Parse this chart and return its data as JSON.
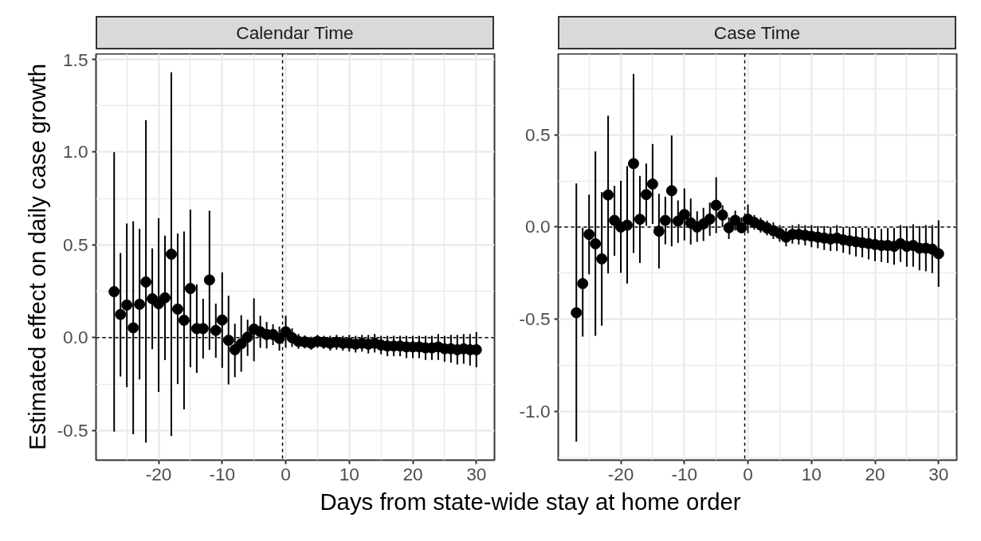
{
  "chart_data": [
    {
      "type": "scatter",
      "title": "Calendar Time",
      "ylabel": "Estimated effect on daily case growth",
      "xlabel": "Days from state-wide stay at home order",
      "marker": "circle",
      "grid": true,
      "xlim": [
        -29.85,
        32.85
      ],
      "xticks": [
        -20,
        -10,
        0,
        10,
        20,
        30
      ],
      "ylim": [
        -0.66,
        1.53
      ],
      "yticks": [
        {
          "value": -0.5,
          "label": "-0.5"
        },
        {
          "value": 0,
          "label": "0.0"
        },
        {
          "value": 0.5,
          "label": "0.5"
        },
        {
          "value": 1.0,
          "label": "1.0"
        },
        {
          "value": 1.5,
          "label": "1.5"
        }
      ],
      "ref_lines": [
        {
          "axis": "y",
          "value": 0,
          "line_style": "dashed"
        },
        {
          "axis": "x",
          "value": -0.5,
          "line_style": "dashed"
        }
      ],
      "series": [
        {
          "color": "#000000",
          "x": [
            -27,
            -26,
            -25,
            -24,
            -23,
            -22,
            -21,
            -20,
            -19,
            -18,
            -17,
            -16,
            -15,
            -14,
            -13,
            -12,
            -11,
            -10,
            -9,
            -8,
            -7,
            -6,
            -5,
            -4,
            -3,
            -2,
            -1,
            0,
            1,
            2,
            3,
            4,
            5,
            6,
            7,
            8,
            9,
            10,
            11,
            12,
            13,
            14,
            15,
            16,
            17,
            18,
            19,
            20,
            21,
            22,
            23,
            24,
            25,
            26,
            27,
            28,
            29,
            30
          ],
          "values": [
            0.248,
            0.125,
            0.176,
            0.053,
            0.18,
            0.3,
            0.21,
            0.183,
            0.215,
            0.45,
            0.154,
            0.094,
            0.265,
            0.049,
            0.049,
            0.311,
            0.039,
            0.095,
            -0.014,
            -0.065,
            -0.033,
            0.003,
            0.046,
            0.032,
            0.017,
            0.017,
            -0.004,
            0.032,
            0.0,
            -0.02,
            -0.023,
            -0.03,
            -0.02,
            -0.025,
            -0.03,
            -0.025,
            -0.03,
            -0.03,
            -0.035,
            -0.03,
            -0.035,
            -0.03,
            -0.04,
            -0.045,
            -0.045,
            -0.045,
            -0.05,
            -0.05,
            -0.05,
            -0.055,
            -0.055,
            -0.05,
            -0.06,
            -0.06,
            -0.065,
            -0.06,
            -0.065,
            -0.065
          ],
          "errors": [
            [
              -0.506,
              1.0
            ],
            [
              -0.209,
              0.457
            ],
            [
              -0.267,
              0.615
            ],
            [
              -0.52,
              0.627
            ],
            [
              -0.225,
              0.586
            ],
            [
              -0.566,
              1.173
            ],
            [
              -0.062,
              0.481
            ],
            [
              -0.293,
              0.644
            ],
            [
              -0.121,
              0.55
            ],
            [
              -0.53,
              1.43
            ],
            [
              -0.25,
              0.562
            ],
            [
              -0.386,
              0.572
            ],
            [
              -0.16,
              0.69
            ],
            [
              -0.19,
              0.288
            ],
            [
              -0.112,
              0.21
            ],
            [
              -0.066,
              0.684
            ],
            [
              -0.108,
              0.183
            ],
            [
              -0.163,
              0.352
            ],
            [
              -0.252,
              0.226
            ],
            [
              -0.213,
              0.075
            ],
            [
              -0.184,
              0.121
            ],
            [
              -0.098,
              0.097
            ],
            [
              -0.127,
              0.212
            ],
            [
              -0.055,
              0.118
            ],
            [
              -0.058,
              0.085
            ],
            [
              -0.04,
              0.072
            ],
            [
              -0.07,
              0.06
            ],
            [
              -0.055,
              0.118
            ],
            0.05,
            0.04,
            0.035,
            0.035,
            0.035,
            0.035,
            0.04,
            0.04,
            0.04,
            0.045,
            0.045,
            0.045,
            0.05,
            0.05,
            0.05,
            0.055,
            0.055,
            0.055,
            0.06,
            0.06,
            0.06,
            0.065,
            0.065,
            0.07,
            0.07,
            0.075,
            0.08,
            0.08,
            0.085,
            0.095
          ]
        }
      ]
    },
    {
      "type": "scatter",
      "title": "Case Time",
      "marker": "circle",
      "grid": true,
      "xlim": [
        -29.85,
        32.85
      ],
      "xticks": [
        -20,
        -10,
        0,
        10,
        20,
        30
      ],
      "ylim": [
        -1.265,
        0.94
      ],
      "yticks": [
        {
          "value": -1.0,
          "label": "-1.0"
        },
        {
          "value": -0.5,
          "label": "-0.5"
        },
        {
          "value": 0,
          "label": "0.0"
        },
        {
          "value": 0.5,
          "label": "0.5"
        }
      ],
      "ref_lines": [
        {
          "axis": "y",
          "value": 0,
          "line_style": "dashed"
        },
        {
          "axis": "x",
          "value": -0.5,
          "line_style": "dashed"
        }
      ],
      "series": [
        {
          "color": "#000000",
          "x": [
            -27,
            -26,
            -25,
            -24,
            -23,
            -22,
            -21,
            -20,
            -19,
            -18,
            -17,
            -16,
            -15,
            -14,
            -13,
            -12,
            -11,
            -10,
            -9,
            -8,
            -7,
            -6,
            -5,
            -4,
            -3,
            -2,
            -1,
            0,
            1,
            2,
            3,
            4,
            5,
            6,
            7,
            8,
            9,
            10,
            11,
            12,
            13,
            14,
            15,
            16,
            17,
            18,
            19,
            20,
            21,
            22,
            23,
            24,
            25,
            26,
            27,
            28,
            29,
            30
          ],
          "values": [
            -0.465,
            -0.307,
            -0.04,
            -0.091,
            -0.173,
            0.174,
            0.036,
            0.0,
            0.01,
            0.344,
            0.042,
            0.176,
            0.233,
            -0.023,
            0.036,
            0.197,
            0.032,
            0.068,
            0.022,
            0.0,
            0.017,
            0.043,
            0.118,
            0.065,
            -0.004,
            0.036,
            -0.004,
            0.042,
            0.025,
            0.01,
            -0.005,
            -0.02,
            -0.035,
            -0.055,
            -0.04,
            -0.04,
            -0.045,
            -0.05,
            -0.055,
            -0.06,
            -0.065,
            -0.06,
            -0.07,
            -0.075,
            -0.08,
            -0.085,
            -0.09,
            -0.095,
            -0.1,
            -0.1,
            -0.105,
            -0.09,
            -0.105,
            -0.1,
            -0.115,
            -0.115,
            -0.12,
            -0.145
          ],
          "errors": [
            [
              -1.164,
              0.236
            ],
            [
              -0.595,
              -0.004
            ],
            [
              -0.256,
              0.176
            ],
            [
              -0.59,
              0.41
            ],
            [
              -0.535,
              0.19
            ],
            [
              -0.252,
              0.604
            ],
            [
              -0.156,
              0.223
            ],
            [
              -0.249,
              0.252
            ],
            [
              -0.307,
              0.33
            ],
            [
              -0.141,
              0.831
            ],
            [
              -0.195,
              0.277
            ],
            [
              0.007,
              0.344
            ],
            [
              0.017,
              0.45
            ],
            [
              -0.225,
              0.18
            ],
            [
              -0.094,
              0.164
            ],
            [
              -0.105,
              0.497
            ],
            [
              -0.086,
              0.144
            ],
            [
              -0.073,
              0.209
            ],
            [
              -0.095,
              0.154
            ],
            [
              -0.081,
              0.085
            ],
            [
              -0.076,
              0.104
            ],
            [
              -0.048,
              0.133
            ],
            [
              -0.033,
              0.27
            ],
            [
              0.0,
              0.118
            ],
            [
              -0.065,
              0.053
            ],
            [
              -0.019,
              0.089
            ],
            [
              -0.033,
              0.053
            ],
            [
              -0.033,
              0.122
            ],
            0.04,
            0.04,
            0.04,
            0.045,
            0.045,
            0.05,
            0.05,
            0.055,
            0.055,
            0.06,
            0.06,
            0.065,
            0.065,
            0.07,
            0.07,
            0.075,
            0.08,
            0.08,
            0.085,
            0.09,
            0.09,
            0.095,
            0.1,
            0.1,
            0.11,
            0.115,
            0.12,
            0.125,
            0.13,
            [
              -0.325,
              0.036
            ]
          ]
        }
      ]
    }
  ]
}
